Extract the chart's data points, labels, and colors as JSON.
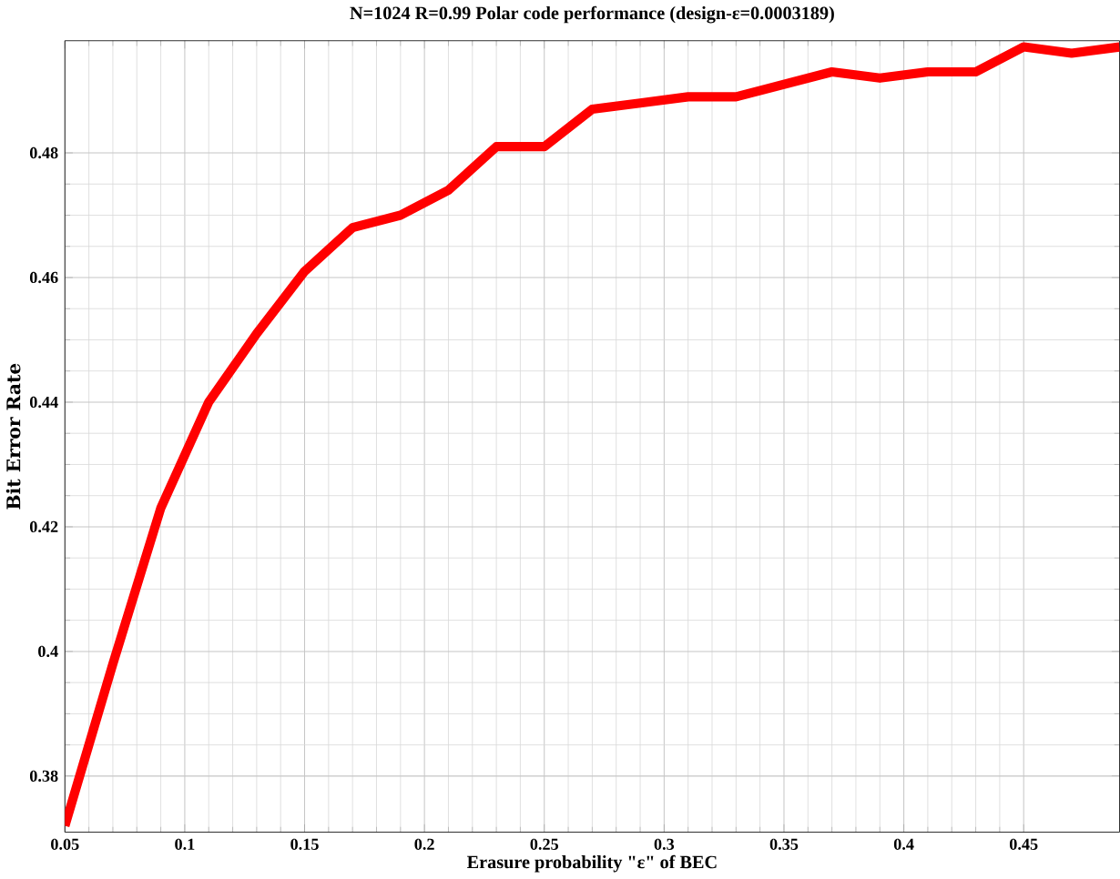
{
  "chart_data": {
    "type": "line",
    "title": "N=1024 R=0.99 Polar code performance (design-ε=0.0003189)",
    "xlabel": "Erasure probability \"ε\" of BEC",
    "ylabel": "Bit Error Rate",
    "x": [
      0.05,
      0.07,
      0.09,
      0.11,
      0.13,
      0.15,
      0.17,
      0.19,
      0.21,
      0.23,
      0.25,
      0.27,
      0.29,
      0.31,
      0.33,
      0.35,
      0.37,
      0.39,
      0.41,
      0.43,
      0.45,
      0.47,
      0.49
    ],
    "series": [
      {
        "color": "#ff0000",
        "values": [
          0.372,
          0.398,
          0.423,
          0.44,
          0.451,
          0.461,
          0.468,
          0.47,
          0.474,
          0.481,
          0.481,
          0.487,
          0.488,
          0.489,
          0.489,
          0.491,
          0.493,
          0.492,
          0.493,
          0.493,
          0.497,
          0.496,
          0.497
        ]
      }
    ],
    "xlim": [
      0.05,
      0.49
    ],
    "ylim": [
      0.371,
      0.498
    ],
    "xticks": [
      0.05,
      0.1,
      0.15,
      0.2,
      0.25,
      0.3,
      0.35,
      0.4,
      0.45
    ],
    "yticks": [
      0.38,
      0.4,
      0.42,
      0.44,
      0.46,
      0.48
    ],
    "grid": true,
    "line_style": "solid",
    "marker": "none"
  }
}
